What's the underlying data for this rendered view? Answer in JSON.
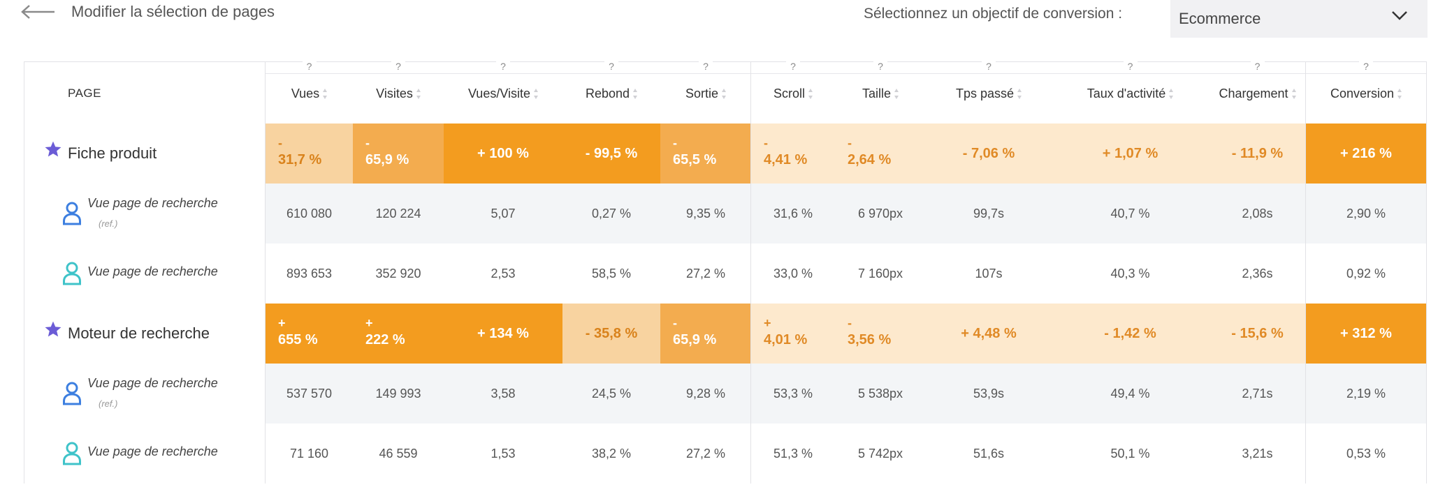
{
  "topbar": {
    "back_label": "Modifier la sélection de pages",
    "conversion_label": "Sélectionnez un objectif de conversion :",
    "conversion_value": "Ecommerce"
  },
  "table": {
    "page_header": "PAGE",
    "help_glyph": "?",
    "columns": [
      "Vues",
      "Visites",
      "Vues/Visite",
      "Rebond",
      "Sortie",
      "Scroll",
      "Taille",
      "Tps passé",
      "Taux d'activité",
      "Chargement",
      "Conversion"
    ],
    "groups": [
      {
        "name": "Fiche produit",
        "metrics": [
          {
            "text": "- 31,7 %",
            "style": "stack",
            "sign": "-",
            "num": "31,7 %",
            "bg": "#f8d3a0",
            "fg": "#d9821b"
          },
          {
            "text": "- 65,9 %",
            "style": "stack",
            "sign": "-",
            "num": "65,9 %",
            "bg": "#f3ac4f",
            "fg": "#ffffff"
          },
          {
            "text": "+ 100 %",
            "style": "inline",
            "bg": "#f39c1f",
            "fg": "#ffffff"
          },
          {
            "text": "- 99,5 %",
            "style": "inline",
            "bg": "#f39c1f",
            "fg": "#ffffff"
          },
          {
            "text": "- 65,5 %",
            "style": "stack",
            "sign": "-",
            "num": "65,5 %",
            "bg": "#f3ac4f",
            "fg": "#ffffff"
          },
          {
            "text": "- 4,41 %",
            "style": "stack",
            "sign": "-",
            "num": "4,41 %",
            "bg": "#fde9cd",
            "fg": "#e08a26"
          },
          {
            "text": "- 2,64 %",
            "style": "stack",
            "sign": "-",
            "num": "2,64 %",
            "bg": "#fde9cd",
            "fg": "#e08a26"
          },
          {
            "text": "- 7,06 %",
            "style": "inline",
            "bg": "#fde9cd",
            "fg": "#e08a26"
          },
          {
            "text": "+ 1,07 %",
            "style": "inline",
            "bg": "#fde9cd",
            "fg": "#e08a26"
          },
          {
            "text": "- 11,9 %",
            "style": "inline",
            "bg": "#fde9cd",
            "fg": "#e08a26"
          },
          {
            "text": "+ 216 %",
            "style": "inline",
            "bg": "#f39c1f",
            "fg": "#ffffff"
          }
        ],
        "rows": [
          {
            "name": "Vue page de recherche",
            "ref": "(ref.)",
            "icon_color": "#3d7fe0",
            "values": [
              "610 080",
              "120 224",
              "5,07",
              "0,27 %",
              "9,35 %",
              "31,6 %",
              "6 970px",
              "99,7s",
              "40,7 %",
              "2,08s",
              "2,90 %"
            ]
          },
          {
            "name": "Vue page de recherche",
            "ref": "",
            "icon_color": "#3fc3c9",
            "values": [
              "893 653",
              "352 920",
              "2,53",
              "58,5 %",
              "27,2 %",
              "33,0 %",
              "7 160px",
              "107s",
              "40,3 %",
              "2,36s",
              "0,92 %"
            ]
          }
        ]
      },
      {
        "name": "Moteur de recherche",
        "metrics": [
          {
            "text": "+ 655 %",
            "style": "stack",
            "sign": "+",
            "num": "655 %",
            "bg": "#f39c1f",
            "fg": "#ffffff"
          },
          {
            "text": "+ 222 %",
            "style": "stack",
            "sign": "+",
            "num": "222 %",
            "bg": "#f39c1f",
            "fg": "#ffffff"
          },
          {
            "text": "+ 134 %",
            "style": "inline",
            "bg": "#f39c1f",
            "fg": "#ffffff"
          },
          {
            "text": "- 35,8 %",
            "style": "inline",
            "bg": "#f8d3a0",
            "fg": "#d9821b"
          },
          {
            "text": "- 65,9 %",
            "style": "stack",
            "sign": "-",
            "num": "65,9 %",
            "bg": "#f3ac4f",
            "fg": "#ffffff"
          },
          {
            "text": "+ 4,01 %",
            "style": "stack",
            "sign": "+",
            "num": "4,01 %",
            "bg": "#fde9cd",
            "fg": "#e08a26"
          },
          {
            "text": "- 3,56 %",
            "style": "stack",
            "sign": "-",
            "num": "3,56 %",
            "bg": "#fde9cd",
            "fg": "#e08a26"
          },
          {
            "text": "+ 4,48 %",
            "style": "inline",
            "bg": "#fde9cd",
            "fg": "#e08a26"
          },
          {
            "text": "- 1,42 %",
            "style": "inline",
            "bg": "#fde9cd",
            "fg": "#e08a26"
          },
          {
            "text": "- 15,6 %",
            "style": "inline",
            "bg": "#fde9cd",
            "fg": "#e08a26"
          },
          {
            "text": "+ 312 %",
            "style": "inline",
            "bg": "#f39c1f",
            "fg": "#ffffff"
          }
        ],
        "rows": [
          {
            "name": "Vue page de recherche",
            "ref": "(ref.)",
            "icon_color": "#3d7fe0",
            "values": [
              "537 570",
              "149 993",
              "3,58",
              "24,5 %",
              "9,28 %",
              "53,3 %",
              "5 538px",
              "53,9s",
              "49,4 %",
              "2,71s",
              "2,19 %"
            ]
          },
          {
            "name": "Vue page de recherche",
            "ref": "",
            "icon_color": "#3fc3c9",
            "values": [
              "71 160",
              "46 559",
              "1,53",
              "38,2 %",
              "27,2 %",
              "51,3 %",
              "5 742px",
              "51,6s",
              "50,1 %",
              "3,21s",
              "0,53 %"
            ]
          }
        ]
      }
    ]
  },
  "colors": {
    "accent_orange": "#f39c1f",
    "star": "#6b5cd6"
  }
}
